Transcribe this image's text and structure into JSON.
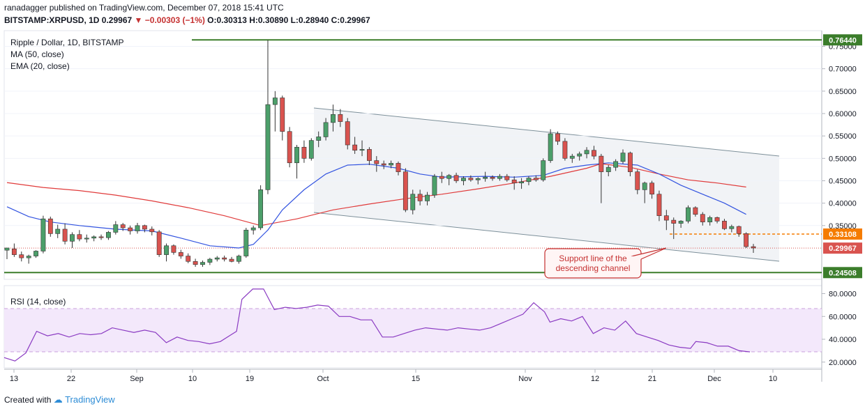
{
  "header": {
    "author": "ranadagger",
    "published_text": "published on TradingView.com, December 07, 2018 15:41 UTC",
    "symbol": "BITSTAMP:XRPUSD, 1D",
    "last": "0.29967",
    "change": "−0.00303 (−1%)",
    "ohlc": "O:0.30313 H:0.30890 L:0.28940 C:0.29967"
  },
  "footer": {
    "created_with": "Created with",
    "brand": "TradingView"
  },
  "colors": {
    "up": "#4c9f6a",
    "down": "#d9534f",
    "ma50": "#e03a3a",
    "ema20": "#3253e0",
    "level": "#3b7d2b",
    "channel": "#8fa3ad",
    "rsi": "#8a3ac2",
    "resistance_dash": "#f57c00"
  },
  "chart_data": [
    {
      "type": "candlestick",
      "legend": [
        "Ripple / Dollar, 1D, BITSTAMP",
        "MA (50, close)",
        "EMA (20, close)"
      ],
      "y_axis_ticks": [
        "0.75000",
        "0.70000",
        "0.65000",
        "0.60000",
        "0.55000",
        "0.50000",
        "0.45000",
        "0.40000",
        "0.35000"
      ],
      "ylim": [
        0.23,
        0.785
      ],
      "x_ticks": [
        "13",
        "22",
        "Sep",
        "10",
        "19",
        "Oct",
        "15",
        "Nov",
        "12",
        "21",
        "Dec",
        "10"
      ],
      "price_labels": {
        "high_level": "0.76440",
        "resistance": "0.33108",
        "last": "0.29967",
        "low_level": "0.24508"
      },
      "horizontal_levels": [
        0.7644,
        0.24508,
        0.33108,
        0.29967
      ],
      "annotation": "Support line of the\ndescending channel",
      "candles": [
        [
          0.295,
          0.3,
          0.275,
          0.3
        ],
        [
          0.298,
          0.31,
          0.28,
          0.285
        ],
        [
          0.285,
          0.292,
          0.27,
          0.278
        ],
        [
          0.278,
          0.285,
          0.265,
          0.282
        ],
        [
          0.282,
          0.295,
          0.278,
          0.293
        ],
        [
          0.293,
          0.372,
          0.288,
          0.365
        ],
        [
          0.365,
          0.37,
          0.325,
          0.332
        ],
        [
          0.332,
          0.352,
          0.322,
          0.342
        ],
        [
          0.342,
          0.355,
          0.308,
          0.315
        ],
        [
          0.315,
          0.335,
          0.3,
          0.33
        ],
        [
          0.33,
          0.34,
          0.315,
          0.32
        ],
        [
          0.32,
          0.33,
          0.312,
          0.322
        ],
        [
          0.322,
          0.328,
          0.315,
          0.325
        ],
        [
          0.325,
          0.33,
          0.318,
          0.323
        ],
        [
          0.323,
          0.338,
          0.318,
          0.335
        ],
        [
          0.335,
          0.36,
          0.33,
          0.352
        ],
        [
          0.352,
          0.356,
          0.338,
          0.345
        ],
        [
          0.345,
          0.35,
          0.33,
          0.338
        ],
        [
          0.338,
          0.356,
          0.332,
          0.35
        ],
        [
          0.35,
          0.352,
          0.335,
          0.342
        ],
        [
          0.342,
          0.348,
          0.328,
          0.336
        ],
        [
          0.336,
          0.34,
          0.28,
          0.285
        ],
        [
          0.285,
          0.31,
          0.27,
          0.305
        ],
        [
          0.305,
          0.308,
          0.285,
          0.29
        ],
        [
          0.29,
          0.296,
          0.276,
          0.282
        ],
        [
          0.282,
          0.288,
          0.266,
          0.27
        ],
        [
          0.27,
          0.276,
          0.258,
          0.263
        ],
        [
          0.263,
          0.272,
          0.258,
          0.268
        ],
        [
          0.268,
          0.278,
          0.262,
          0.275
        ],
        [
          0.275,
          0.282,
          0.27,
          0.278
        ],
        [
          0.278,
          0.283,
          0.27,
          0.275
        ],
        [
          0.275,
          0.28,
          0.268,
          0.27
        ],
        [
          0.27,
          0.285,
          0.265,
          0.282
        ],
        [
          0.282,
          0.345,
          0.278,
          0.34
        ],
        [
          0.34,
          0.35,
          0.33,
          0.345
        ],
        [
          0.345,
          0.44,
          0.34,
          0.43
        ],
        [
          0.43,
          0.764,
          0.42,
          0.62
        ],
        [
          0.62,
          0.65,
          0.56,
          0.635
        ],
        [
          0.635,
          0.64,
          0.54,
          0.56
        ],
        [
          0.56,
          0.57,
          0.48,
          0.49
        ],
        [
          0.49,
          0.53,
          0.455,
          0.525
        ],
        [
          0.525,
          0.54,
          0.49,
          0.5
        ],
        [
          0.5,
          0.545,
          0.495,
          0.54
        ],
        [
          0.54,
          0.56,
          0.525,
          0.548
        ],
        [
          0.548,
          0.59,
          0.54,
          0.58
        ],
        [
          0.58,
          0.62,
          0.56,
          0.598
        ],
        [
          0.598,
          0.61,
          0.57,
          0.582
        ],
        [
          0.582,
          0.59,
          0.52,
          0.53
        ],
        [
          0.53,
          0.548,
          0.51,
          0.518
        ],
        [
          0.518,
          0.54,
          0.505,
          0.52
        ],
        [
          0.52,
          0.525,
          0.485,
          0.495
        ],
        [
          0.495,
          0.505,
          0.47,
          0.488
        ],
        [
          0.488,
          0.495,
          0.476,
          0.485
        ],
        [
          0.485,
          0.495,
          0.478,
          0.489
        ],
        [
          0.489,
          0.493,
          0.462,
          0.47
        ],
        [
          0.47,
          0.478,
          0.38,
          0.385
        ],
        [
          0.385,
          0.43,
          0.375,
          0.42
        ],
        [
          0.42,
          0.43,
          0.395,
          0.405
        ],
        [
          0.405,
          0.425,
          0.395,
          0.418
        ],
        [
          0.418,
          0.465,
          0.412,
          0.46
        ],
        [
          0.46,
          0.47,
          0.445,
          0.455
        ],
        [
          0.455,
          0.465,
          0.44,
          0.462
        ],
        [
          0.462,
          0.468,
          0.445,
          0.45
        ],
        [
          0.45,
          0.46,
          0.44,
          0.456
        ],
        [
          0.456,
          0.462,
          0.448,
          0.452
        ],
        [
          0.452,
          0.458,
          0.442,
          0.455
        ],
        [
          0.455,
          0.47,
          0.448,
          0.458
        ],
        [
          0.458,
          0.462,
          0.45,
          0.455
        ],
        [
          0.455,
          0.465,
          0.45,
          0.46
        ],
        [
          0.46,
          0.465,
          0.448,
          0.452
        ],
        [
          0.452,
          0.46,
          0.43,
          0.445
        ],
        [
          0.445,
          0.456,
          0.432,
          0.448
        ],
        [
          0.448,
          0.46,
          0.44,
          0.456
        ],
        [
          0.456,
          0.462,
          0.448,
          0.452
        ],
        [
          0.452,
          0.5,
          0.448,
          0.495
        ],
        [
          0.495,
          0.565,
          0.49,
          0.555
        ],
        [
          0.555,
          0.56,
          0.53,
          0.538
        ],
        [
          0.538,
          0.545,
          0.495,
          0.5
        ],
        [
          0.5,
          0.51,
          0.49,
          0.505
        ],
        [
          0.505,
          0.515,
          0.495,
          0.51
        ],
        [
          0.51,
          0.525,
          0.5,
          0.518
        ],
        [
          0.518,
          0.528,
          0.498,
          0.505
        ],
        [
          0.505,
          0.51,
          0.4,
          0.47
        ],
        [
          0.47,
          0.485,
          0.46,
          0.48
        ],
        [
          0.48,
          0.498,
          0.472,
          0.493
        ],
        [
          0.493,
          0.52,
          0.488,
          0.512
        ],
        [
          0.512,
          0.515,
          0.46,
          0.47
        ],
        [
          0.47,
          0.475,
          0.42,
          0.43
        ],
        [
          0.43,
          0.448,
          0.4,
          0.445
        ],
        [
          0.445,
          0.45,
          0.41,
          0.42
        ],
        [
          0.42,
          0.428,
          0.36,
          0.372
        ],
        [
          0.372,
          0.385,
          0.34,
          0.362
        ],
        [
          0.362,
          0.368,
          0.32,
          0.355
        ],
        [
          0.355,
          0.362,
          0.345,
          0.36
        ],
        [
          0.36,
          0.395,
          0.355,
          0.39
        ],
        [
          0.39,
          0.393,
          0.37,
          0.375
        ],
        [
          0.375,
          0.38,
          0.35,
          0.358
        ],
        [
          0.358,
          0.372,
          0.35,
          0.368
        ],
        [
          0.368,
          0.37,
          0.355,
          0.36
        ],
        [
          0.36,
          0.365,
          0.34,
          0.343
        ],
        [
          0.343,
          0.352,
          0.335,
          0.348
        ],
        [
          0.348,
          0.35,
          0.325,
          0.332
        ],
        [
          0.332,
          0.335,
          0.3,
          0.303
        ],
        [
          0.303,
          0.309,
          0.289,
          0.3
        ]
      ],
      "ma50": [
        [
          0,
          0.446
        ],
        [
          5,
          0.435
        ],
        [
          10,
          0.428
        ],
        [
          15,
          0.418
        ],
        [
          20,
          0.405
        ],
        [
          25,
          0.39
        ],
        [
          30,
          0.372
        ],
        [
          35,
          0.35
        ],
        [
          40,
          0.365
        ],
        [
          45,
          0.385
        ],
        [
          50,
          0.398
        ],
        [
          55,
          0.41
        ],
        [
          60,
          0.42
        ],
        [
          65,
          0.432
        ],
        [
          70,
          0.445
        ],
        [
          75,
          0.46
        ],
        [
          80,
          0.478
        ],
        [
          82,
          0.488
        ],
        [
          86,
          0.48
        ],
        [
          90,
          0.465
        ],
        [
          94,
          0.452
        ],
        [
          98,
          0.445
        ],
        [
          102,
          0.436
        ]
      ],
      "ema20": [
        [
          0,
          0.392
        ],
        [
          3,
          0.37
        ],
        [
          6,
          0.358
        ],
        [
          10,
          0.35
        ],
        [
          15,
          0.342
        ],
        [
          20,
          0.338
        ],
        [
          24,
          0.322
        ],
        [
          28,
          0.305
        ],
        [
          32,
          0.3
        ],
        [
          34,
          0.308
        ],
        [
          36,
          0.34
        ],
        [
          38,
          0.385
        ],
        [
          41,
          0.43
        ],
        [
          44,
          0.465
        ],
        [
          47,
          0.485
        ],
        [
          50,
          0.487
        ],
        [
          54,
          0.478
        ],
        [
          57,
          0.465
        ],
        [
          60,
          0.458
        ],
        [
          66,
          0.46
        ],
        [
          70,
          0.458
        ],
        [
          74,
          0.462
        ],
        [
          77,
          0.478
        ],
        [
          80,
          0.485
        ],
        [
          83,
          0.49
        ],
        [
          87,
          0.485
        ],
        [
          90,
          0.465
        ],
        [
          93,
          0.44
        ],
        [
          96,
          0.42
        ],
        [
          99,
          0.4
        ],
        [
          102,
          0.375
        ]
      ]
    },
    {
      "type": "line",
      "legend": [
        "RSI (14, close)"
      ],
      "y_axis_ticks": [
        "80.0000",
        "60.0000",
        "40.0000",
        "20.0000"
      ],
      "ylim": [
        15,
        87
      ],
      "bands": [
        30,
        70
      ],
      "rsi": [
        [
          0,
          24
        ],
        [
          2,
          21
        ],
        [
          4,
          28
        ],
        [
          6,
          47
        ],
        [
          8,
          43
        ],
        [
          10,
          45
        ],
        [
          12,
          42
        ],
        [
          14,
          45
        ],
        [
          16,
          44
        ],
        [
          18,
          45
        ],
        [
          20,
          50
        ],
        [
          22,
          48
        ],
        [
          24,
          46
        ],
        [
          26,
          48
        ],
        [
          28,
          46
        ],
        [
          30,
          37
        ],
        [
          32,
          42
        ],
        [
          34,
          39
        ],
        [
          36,
          38
        ],
        [
          38,
          36
        ],
        [
          40,
          38
        ],
        [
          42,
          44
        ],
        [
          43,
          47
        ],
        [
          44,
          75
        ],
        [
          46,
          84
        ],
        [
          48,
          84
        ],
        [
          50,
          66
        ],
        [
          52,
          68
        ],
        [
          54,
          67
        ],
        [
          56,
          68
        ],
        [
          58,
          70
        ],
        [
          60,
          69
        ],
        [
          62,
          60
        ],
        [
          64,
          60
        ],
        [
          66,
          57
        ],
        [
          68,
          57
        ],
        [
          70,
          42
        ],
        [
          72,
          42
        ],
        [
          74,
          45
        ],
        [
          76,
          48
        ],
        [
          78,
          50
        ],
        [
          80,
          49
        ],
        [
          82,
          48
        ],
        [
          84,
          50
        ],
        [
          86,
          49
        ],
        [
          88,
          48
        ],
        [
          90,
          50
        ],
        [
          92,
          54
        ],
        [
          94,
          58
        ],
        [
          96,
          62
        ],
        [
          98,
          72
        ],
        [
          100,
          64
        ],
        [
          101,
          55
        ],
        [
          103,
          58
        ],
        [
          105,
          56
        ],
        [
          107,
          60
        ],
        [
          109,
          45
        ],
        [
          111,
          50
        ],
        [
          113,
          48
        ],
        [
          115,
          56
        ],
        [
          117,
          45
        ],
        [
          119,
          42
        ],
        [
          121,
          39
        ],
        [
          123,
          35
        ],
        [
          125,
          33
        ],
        [
          127,
          32
        ],
        [
          128,
          38
        ],
        [
          130,
          37
        ],
        [
          132,
          34
        ],
        [
          134,
          34
        ],
        [
          136,
          30
        ],
        [
          138,
          29
        ]
      ]
    }
  ]
}
